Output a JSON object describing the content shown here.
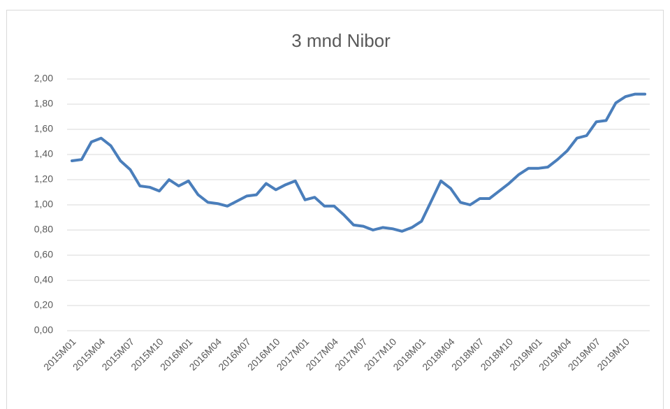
{
  "chart_data": {
    "type": "line",
    "title": "3 mnd Nibor",
    "categories": [
      "2015M01",
      null,
      null,
      "2015M04",
      null,
      null,
      "2015M07",
      null,
      null,
      "2015M10",
      null,
      null,
      "2016M01",
      null,
      null,
      "2016M04",
      null,
      null,
      "2016M07",
      null,
      null,
      "2016M10",
      null,
      null,
      "2017M01",
      null,
      null,
      "2017M04",
      null,
      null,
      "2017M07",
      null,
      null,
      "2017M10",
      null,
      null,
      "2018M01",
      null,
      null,
      "2018M04",
      null,
      null,
      "2018M07",
      null,
      null,
      "2018M10",
      null,
      null,
      "2019M01",
      null,
      null,
      "2019M04",
      null,
      null,
      "2019M07",
      null,
      null,
      "2019M10",
      null,
      null
    ],
    "series": [
      {
        "name": "3 mnd Nibor",
        "color": "#4a7ebb",
        "values": [
          1.35,
          1.36,
          1.5,
          1.53,
          1.47,
          1.35,
          1.28,
          1.15,
          1.14,
          1.11,
          1.2,
          1.15,
          1.19,
          1.08,
          1.02,
          1.01,
          0.99,
          1.03,
          1.07,
          1.08,
          1.17,
          1.12,
          1.16,
          1.19,
          1.04,
          1.06,
          0.99,
          0.99,
          0.92,
          0.84,
          0.83,
          0.8,
          0.82,
          0.81,
          0.79,
          0.82,
          0.87,
          1.03,
          1.19,
          1.13,
          1.02,
          1.0,
          1.05,
          1.05,
          1.11,
          1.17,
          1.24,
          1.29,
          1.29,
          1.3,
          1.36,
          1.43,
          1.53,
          1.55,
          1.66,
          1.67,
          1.81,
          1.86,
          1.88,
          1.88
        ]
      }
    ],
    "ylim": [
      0,
      2
    ],
    "yticks": [
      {
        "value": 0,
        "label": "0,00"
      },
      {
        "value": 0.2,
        "label": "0,20"
      },
      {
        "value": 0.4,
        "label": "0,40"
      },
      {
        "value": 0.6,
        "label": "0,60"
      },
      {
        "value": 0.8,
        "label": "0,80"
      },
      {
        "value": 1,
        "label": "1,00"
      },
      {
        "value": 1.2,
        "label": "1,20"
      },
      {
        "value": 1.4,
        "label": "1,40"
      },
      {
        "value": 1.6,
        "label": "1,60"
      },
      {
        "value": 1.8,
        "label": "1,80"
      },
      {
        "value": 2,
        "label": "2,00"
      }
    ],
    "grid": true
  }
}
